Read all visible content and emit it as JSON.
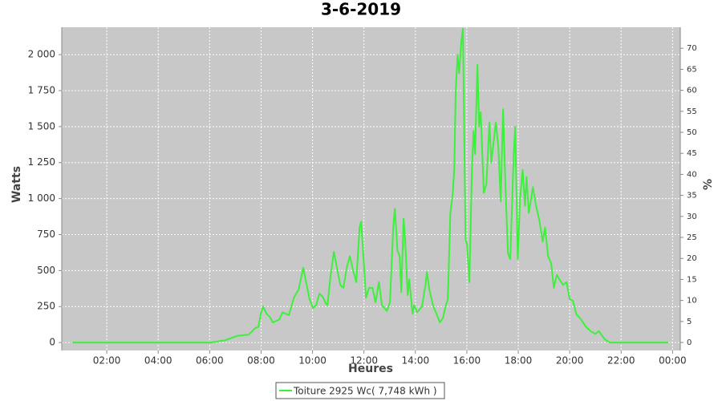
{
  "chart_data": {
    "type": "line",
    "title": "3-6-2019",
    "x_label": "Heures",
    "y_label": "Watts",
    "y2_label": "%",
    "xlim": [
      0.25,
      24.3
    ],
    "xticks": [
      {
        "value": 2,
        "label": "02:00"
      },
      {
        "value": 4,
        "label": "04:00"
      },
      {
        "value": 6,
        "label": "06:00"
      },
      {
        "value": 8,
        "label": "08:00"
      },
      {
        "value": 10,
        "label": "10:00"
      },
      {
        "value": 12,
        "label": "12:00"
      },
      {
        "value": 14,
        "label": "14:00"
      },
      {
        "value": 16,
        "label": "16:00"
      },
      {
        "value": 18,
        "label": "18:00"
      },
      {
        "value": 20,
        "label": "20:00"
      },
      {
        "value": 22,
        "label": "22:00"
      },
      {
        "value": 24,
        "label": "00:00"
      }
    ],
    "ylim": [
      -55,
      2190
    ],
    "yticks": [
      0,
      250,
      500,
      750,
      {
        "value": 1000,
        "label": "1 000"
      },
      {
        "value": 1250,
        "label": "1 250"
      },
      {
        "value": 1500,
        "label": "1 500"
      },
      {
        "value": 1750,
        "label": "1 750"
      },
      {
        "value": 2000,
        "label": "2 000"
      }
    ],
    "y2lim": [
      -1.9,
      75
    ],
    "y2ticks": [
      0,
      5,
      10,
      15,
      20,
      25,
      30,
      35,
      40,
      45,
      50,
      55,
      60,
      65,
      70
    ],
    "grid": true,
    "legend": "bottom",
    "x": [
      0.66,
      6.02,
      6.59,
      7.05,
      7.2,
      7.52,
      7.77,
      7.9,
      7.99,
      8.08,
      8.21,
      8.33,
      8.46,
      8.71,
      8.83,
      8.96,
      9.08,
      9.27,
      9.46,
      9.64,
      9.77,
      9.89,
      10.02,
      10.14,
      10.27,
      10.39,
      10.52,
      10.58,
      10.7,
      10.83,
      10.95,
      11.08,
      11.2,
      11.33,
      11.45,
      11.58,
      11.7,
      11.83,
      11.89,
      11.98,
      12.08,
      12.2,
      12.33,
      12.45,
      12.58,
      12.7,
      12.89,
      13.01,
      13.14,
      13.2,
      13.3,
      13.39,
      13.45,
      13.54,
      13.6,
      13.7,
      13.76,
      13.89,
      13.95,
      14.07,
      14.26,
      14.39,
      14.45,
      14.54,
      14.7,
      14.82,
      14.95,
      15.07,
      15.17,
      15.26,
      15.36,
      15.45,
      15.51,
      15.57,
      15.64,
      15.7,
      15.79,
      15.85,
      15.95,
      16.01,
      16.1,
      16.2,
      16.26,
      16.32,
      16.41,
      16.48,
      16.54,
      16.66,
      16.76,
      16.88,
      16.95,
      17.13,
      17.23,
      17.32,
      17.41,
      17.51,
      17.6,
      17.69,
      17.82,
      17.88,
      17.98,
      18.07,
      18.17,
      18.26,
      18.32,
      18.41,
      18.5,
      18.57,
      18.69,
      18.82,
      18.95,
      19.04,
      19.16,
      19.28,
      19.38,
      19.5,
      19.63,
      19.75,
      19.88,
      20.0,
      20.13,
      20.25,
      20.44,
      20.63,
      20.81,
      21.0,
      21.13,
      21.25,
      21.38,
      21.56,
      23.84
    ],
    "series": [
      {
        "name": "Toiture 2925 Wc( 7,748 kWh )",
        "color": "#3cf03c",
        "values": [
          0,
          0,
          15,
          45,
          50,
          55,
          100,
          110,
          200,
          250,
          200,
          180,
          140,
          160,
          210,
          200,
          190,
          310,
          370,
          520,
          400,
          300,
          240,
          260,
          340,
          320,
          270,
          260,
          460,
          630,
          520,
          400,
          380,
          520,
          600,
          500,
          420,
          800,
          840,
          600,
          310,
          380,
          380,
          280,
          420,
          260,
          220,
          280,
          800,
          930,
          640,
          600,
          350,
          860,
          720,
          330,
          440,
          200,
          260,
          210,
          250,
          400,
          490,
          370,
          250,
          200,
          140,
          170,
          250,
          300,
          900,
          1030,
          1200,
          1750,
          2000,
          1870,
          2100,
          2180,
          720,
          680,
          420,
          1200,
          1470,
          1310,
          1930,
          1500,
          1600,
          1040,
          1100,
          1530,
          1250,
          1530,
          1350,
          980,
          1620,
          1050,
          620,
          580,
          1300,
          1500,
          580,
          1000,
          1200,
          950,
          1150,
          900,
          1000,
          1080,
          950,
          850,
          700,
          800,
          600,
          550,
          380,
          470,
          430,
          400,
          420,
          300,
          290,
          200,
          160,
          110,
          80,
          60,
          80,
          50,
          20,
          0,
          0
        ]
      }
    ]
  }
}
